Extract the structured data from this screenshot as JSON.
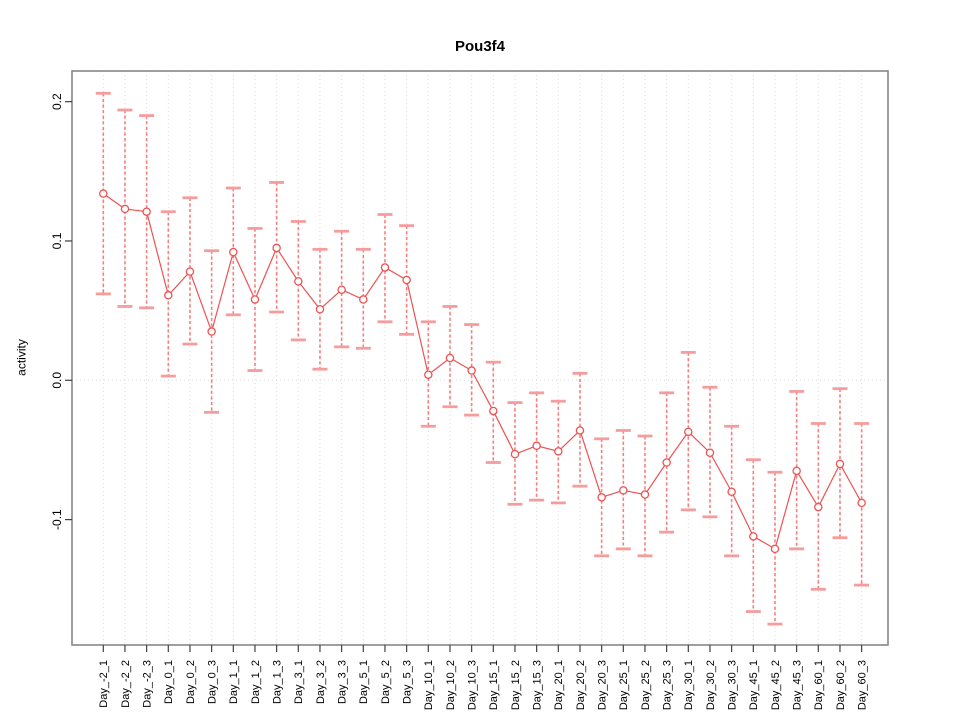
{
  "window": {
    "background": "#ffffff"
  },
  "chart_data": {
    "type": "line",
    "title": "Pou3f4",
    "xlabel": "",
    "ylabel": "activity",
    "legend": "none",
    "grid": {
      "vertical_dotted_per_category": true,
      "horizontal_dotted_at_zero": true
    },
    "ylim": [
      -0.19,
      0.222
    ],
    "yticks": [
      0.2,
      0.1,
      0.0,
      -0.1
    ],
    "ytick_labels": [
      "0.2",
      "0.1",
      "0.0",
      "-0.1"
    ],
    "categories": [
      "Day_-2_1",
      "Day_-2_2",
      "Day_-2_3",
      "Day_0_1",
      "Day_0_2",
      "Day_0_3",
      "Day_1_1",
      "Day_1_2",
      "Day_1_3",
      "Day_3_1",
      "Day_3_2",
      "Day_3_3",
      "Day_5_1",
      "Day_5_2",
      "Day_5_3",
      "Day_10_1",
      "Day_10_2",
      "Day_10_3",
      "Day_15_1",
      "Day_15_2",
      "Day_15_3",
      "Day_20_1",
      "Day_20_2",
      "Day_20_3",
      "Day_25_1",
      "Day_25_2",
      "Day_25_3",
      "Day_30_1",
      "Day_30_2",
      "Day_30_3",
      "Day_45_1",
      "Day_45_2",
      "Day_45_3",
      "Day_60_1",
      "Day_60_2",
      "Day_60_3"
    ],
    "series": [
      {
        "name": "activity",
        "values": [
          0.134,
          0.123,
          0.121,
          0.061,
          0.078,
          0.035,
          0.092,
          0.058,
          0.095,
          0.071,
          0.051,
          0.065,
          0.058,
          0.081,
          0.072,
          0.004,
          0.016,
          0.007,
          -0.022,
          -0.053,
          -0.047,
          -0.051,
          -0.036,
          -0.084,
          -0.079,
          -0.082,
          -0.059,
          -0.037,
          -0.052,
          -0.08,
          -0.112,
          -0.121,
          -0.065,
          -0.091,
          -0.06,
          -0.088
        ],
        "upper": [
          0.206,
          0.194,
          0.19,
          0.121,
          0.131,
          0.093,
          0.138,
          0.109,
          0.142,
          0.114,
          0.094,
          0.107,
          0.094,
          0.119,
          0.111,
          0.042,
          0.053,
          0.04,
          0.013,
          -0.016,
          -0.009,
          -0.015,
          0.005,
          -0.042,
          -0.036,
          -0.04,
          -0.009,
          0.02,
          -0.005,
          -0.033,
          -0.057,
          -0.066,
          -0.008,
          -0.031,
          -0.006,
          -0.031
        ],
        "lower": [
          0.062,
          0.053,
          0.052,
          0.003,
          0.026,
          -0.023,
          0.047,
          0.007,
          0.049,
          0.029,
          0.008,
          0.024,
          0.023,
          0.042,
          0.033,
          -0.033,
          -0.019,
          -0.025,
          -0.059,
          -0.089,
          -0.086,
          -0.088,
          -0.076,
          -0.126,
          -0.121,
          -0.126,
          -0.109,
          -0.093,
          -0.098,
          -0.126,
          -0.166,
          -0.175,
          -0.121,
          -0.15,
          -0.113,
          -0.147
        ]
      }
    ],
    "colors": {
      "point_stroke": "#ee5252",
      "series_line": "#ee5252",
      "error_bar_line": "#f48080",
      "error_bar_cap": "#f59c9c",
      "grid_line": "#dcdcdc",
      "plot_border": "#878787",
      "tick_mark": "#404040",
      "label_text": "#000000"
    }
  }
}
